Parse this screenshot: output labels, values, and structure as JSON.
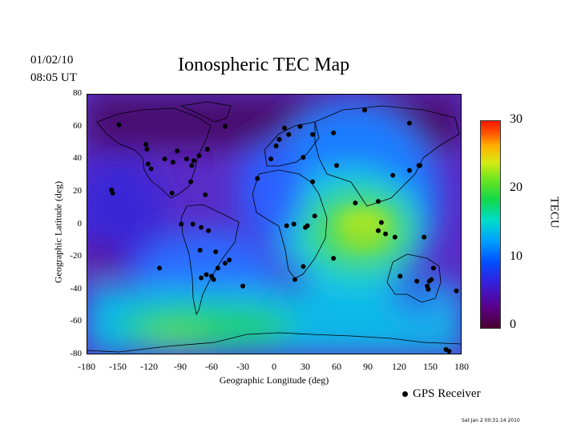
{
  "date": "01/02/10",
  "time": "08:05 UT",
  "title": "Ionospheric TEC Map",
  "ylabel": "Geographic Latitude (deg)",
  "xlabel": "Geographic Longitude (deg)",
  "yticks": [
    "80",
    "60",
    "40",
    "20",
    "0",
    "-20",
    "-40",
    "-60",
    "-80"
  ],
  "xticks": [
    "-180",
    "-150",
    "-120",
    "-90",
    "-60",
    "-30",
    "0",
    "30",
    "60",
    "90",
    "120",
    "150",
    "180"
  ],
  "colorbar": {
    "label": "TECU",
    "ticks": [
      "30",
      "20",
      "10",
      "0"
    ],
    "min": 0,
    "max": 30
  },
  "legend_label": "GPS Receiver",
  "timestamp": "Sat Jan  2 00:31:14 2010",
  "colors": {
    "low": "#4a0030",
    "mid": "#00a0ff",
    "high": "#ff1800",
    "marker": "#000000"
  },
  "receivers": [
    [
      -149,
      61
    ],
    [
      -123,
      49
    ],
    [
      -122,
      46
    ],
    [
      -121,
      37
    ],
    [
      -118,
      34
    ],
    [
      -105,
      40
    ],
    [
      -97,
      38
    ],
    [
      -93,
      45
    ],
    [
      -84,
      40
    ],
    [
      -79,
      36
    ],
    [
      -80,
      26
    ],
    [
      -98,
      19
    ],
    [
      -77,
      39
    ],
    [
      -72,
      42
    ],
    [
      -64,
      46
    ],
    [
      -66,
      18
    ],
    [
      -156,
      21
    ],
    [
      -155,
      19
    ],
    [
      -110,
      -27
    ],
    [
      -89,
      0
    ],
    [
      -78,
      0
    ],
    [
      -70,
      -2
    ],
    [
      -71,
      -16
    ],
    [
      -70,
      -33
    ],
    [
      -65,
      -31
    ],
    [
      -60,
      -32
    ],
    [
      -58,
      -34
    ],
    [
      -54,
      -27
    ],
    [
      -56,
      -17
    ],
    [
      -47,
      -24
    ],
    [
      -43,
      -22
    ],
    [
      -63,
      -4
    ],
    [
      -47,
      60
    ],
    [
      -16,
      28
    ],
    [
      -3,
      40
    ],
    [
      2,
      48
    ],
    [
      5,
      52
    ],
    [
      10,
      59
    ],
    [
      14,
      55
    ],
    [
      25,
      60
    ],
    [
      28,
      41
    ],
    [
      37,
      55
    ],
    [
      57,
      56
    ],
    [
      87,
      70
    ],
    [
      130,
      62
    ],
    [
      130,
      33
    ],
    [
      37,
      26
    ],
    [
      12,
      -1
    ],
    [
      19,
      0
    ],
    [
      32,
      -1
    ],
    [
      30,
      -2
    ],
    [
      20,
      -34
    ],
    [
      28,
      -26
    ],
    [
      39,
      5
    ],
    [
      57,
      -21
    ],
    [
      78,
      13
    ],
    [
      100,
      14
    ],
    [
      114,
      30
    ],
    [
      103,
      1
    ],
    [
      116,
      -8
    ],
    [
      121,
      -32
    ],
    [
      137,
      -35
    ],
    [
      147,
      -38
    ],
    [
      149,
      -35
    ],
    [
      151,
      -34
    ],
    [
      153,
      -27
    ],
    [
      175,
      -41
    ],
    [
      140,
      36
    ],
    [
      139,
      36
    ],
    [
      144,
      -8
    ],
    [
      -30,
      -38
    ],
    [
      60,
      36
    ],
    [
      107,
      -6
    ],
    [
      100,
      -4
    ],
    [
      148,
      -40
    ],
    [
      165,
      -77
    ],
    [
      168,
      -78
    ]
  ]
}
